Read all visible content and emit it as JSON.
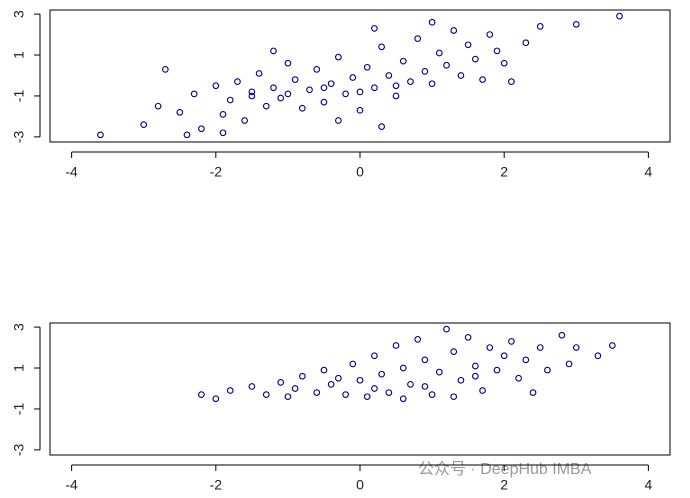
{
  "chart_data": [
    {
      "type": "scatter",
      "color": "#00008b",
      "xlim": [
        -4.3,
        4.3
      ],
      "ylim": [
        -3.25,
        3.2
      ],
      "xticks": [
        -4,
        -2,
        0,
        2,
        4
      ],
      "yticks": [
        -3,
        -1,
        1,
        3
      ],
      "x": [
        -3.6,
        -3.0,
        -2.8,
        -2.7,
        -2.5,
        -2.3,
        -2.2,
        -2.0,
        -1.9,
        -1.8,
        -1.7,
        -1.6,
        -1.5,
        -1.4,
        -1.3,
        -1.2,
        -1.1,
        -1.0,
        -0.9,
        -0.8,
        -0.7,
        -0.6,
        -0.5,
        -0.4,
        -0.3,
        -0.2,
        -0.1,
        0.0,
        0.1,
        0.2,
        0.3,
        0.4,
        0.5,
        0.6,
        0.7,
        0.8,
        0.9,
        1.0,
        1.1,
        1.2,
        1.3,
        1.4,
        1.5,
        1.6,
        1.7,
        1.8,
        1.9,
        2.0,
        2.1,
        2.3,
        2.5,
        3.0,
        3.6,
        -1.5,
        -1.0,
        -0.5,
        0.0,
        0.5,
        -2.4,
        -1.9,
        0.3,
        -0.3,
        1.0,
        0.2,
        -1.2
      ],
      "values": [
        -2.9,
        -2.4,
        -1.5,
        0.3,
        -1.8,
        -0.9,
        -2.6,
        -0.5,
        -1.9,
        -1.2,
        -0.3,
        -2.2,
        -0.8,
        0.1,
        -1.5,
        -0.6,
        -1.1,
        0.6,
        -0.2,
        -1.6,
        -0.7,
        0.3,
        -1.3,
        -0.4,
        0.9,
        -0.9,
        -0.1,
        -1.7,
        0.4,
        -0.6,
        1.4,
        0.0,
        -1.0,
        0.7,
        -0.3,
        1.8,
        0.2,
        -0.4,
        1.1,
        0.5,
        2.2,
        0.0,
        1.5,
        0.8,
        -0.2,
        2.0,
        1.2,
        0.6,
        -0.3,
        1.6,
        2.4,
        2.5,
        2.9,
        -1.0,
        -0.9,
        -0.6,
        -0.8,
        -0.5,
        -2.9,
        -2.8,
        -2.5,
        -2.2,
        2.6,
        2.3,
        1.2
      ]
    },
    {
      "type": "scatter",
      "color": "#00008b",
      "xlim": [
        -4.3,
        4.3
      ],
      "ylim": [
        -3.25,
        3.2
      ],
      "xticks": [
        -4,
        -2,
        0,
        2,
        4
      ],
      "yticks": [
        -3,
        -1,
        1,
        3
      ],
      "x": [
        -2.2,
        -2.0,
        -1.8,
        -1.5,
        -1.3,
        -1.1,
        -1.0,
        -0.8,
        -0.6,
        -0.5,
        -0.4,
        -0.2,
        -0.1,
        0.0,
        0.1,
        0.2,
        0.3,
        0.4,
        0.5,
        0.6,
        0.7,
        0.8,
        0.9,
        1.0,
        1.1,
        1.2,
        1.3,
        1.4,
        1.5,
        1.6,
        1.7,
        1.8,
        1.9,
        2.0,
        2.1,
        2.2,
        2.3,
        2.5,
        2.6,
        2.8,
        2.9,
        3.0,
        3.3,
        3.5,
        0.2,
        0.6,
        -0.3,
        1.3,
        0.9,
        1.6,
        -0.9,
        2.4
      ],
      "values": [
        -0.3,
        -0.5,
        -0.1,
        0.1,
        -0.3,
        0.3,
        -0.4,
        0.6,
        -0.2,
        0.9,
        0.2,
        -0.3,
        1.2,
        0.4,
        -0.4,
        1.6,
        0.7,
        -0.2,
        2.1,
        1.0,
        0.2,
        2.4,
        1.4,
        -0.3,
        0.8,
        2.9,
        1.8,
        0.4,
        2.5,
        1.1,
        -0.1,
        2.0,
        0.9,
        1.6,
        2.3,
        0.5,
        1.4,
        2.0,
        0.9,
        2.6,
        1.2,
        2.0,
        1.6,
        2.1,
        0.0,
        -0.5,
        0.5,
        -0.4,
        0.1,
        0.6,
        0.0,
        -0.2
      ]
    }
  ],
  "watermark": "公众号 · DeepHub IMBA"
}
